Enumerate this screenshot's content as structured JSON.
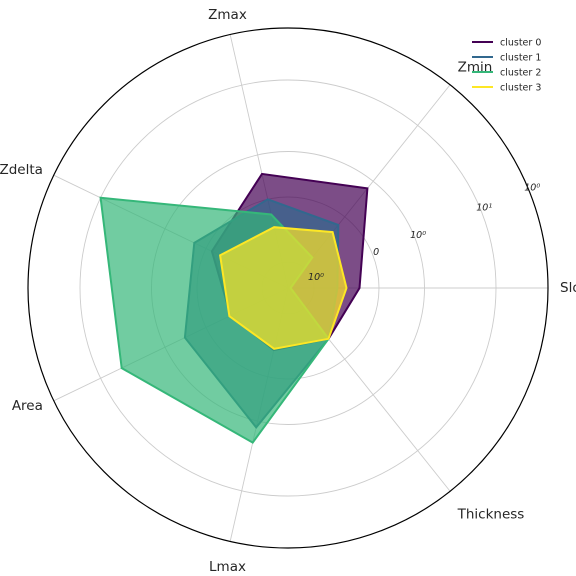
{
  "chart_data": {
    "type": "radar",
    "axes": [
      "Slope",
      "Zmin",
      "Zmax",
      "Zdelta",
      "Area",
      "Lmax",
      "Thickness"
    ],
    "radial_scale": "log",
    "radial_tick_labels": [
      "10⁰",
      "0",
      "10⁰",
      "10¹",
      "10⁰"
    ],
    "grid": true,
    "legend_position": "top-right",
    "series": [
      {
        "name": "cluster 0",
        "color": "#440154",
        "values": [
          0.55,
          0.98,
          0.9,
          0.65,
          0.49,
          0.49,
          0.5
        ]
      },
      {
        "name": "cluster 1",
        "color": "#31688e",
        "values": [
          0.38,
          0.62,
          0.7,
          0.8,
          0.88,
          1.1,
          0.5
        ]
      },
      {
        "name": "cluster 2",
        "color": "#35b779",
        "values": [
          0.02,
          0.3,
          0.58,
          1.6,
          1.42,
          1.22,
          0.5
        ]
      },
      {
        "name": "cluster 3",
        "color": "#fde725",
        "values": [
          0.45,
          0.55,
          0.48,
          0.58,
          0.5,
          0.48,
          0.5
        ]
      }
    ]
  }
}
